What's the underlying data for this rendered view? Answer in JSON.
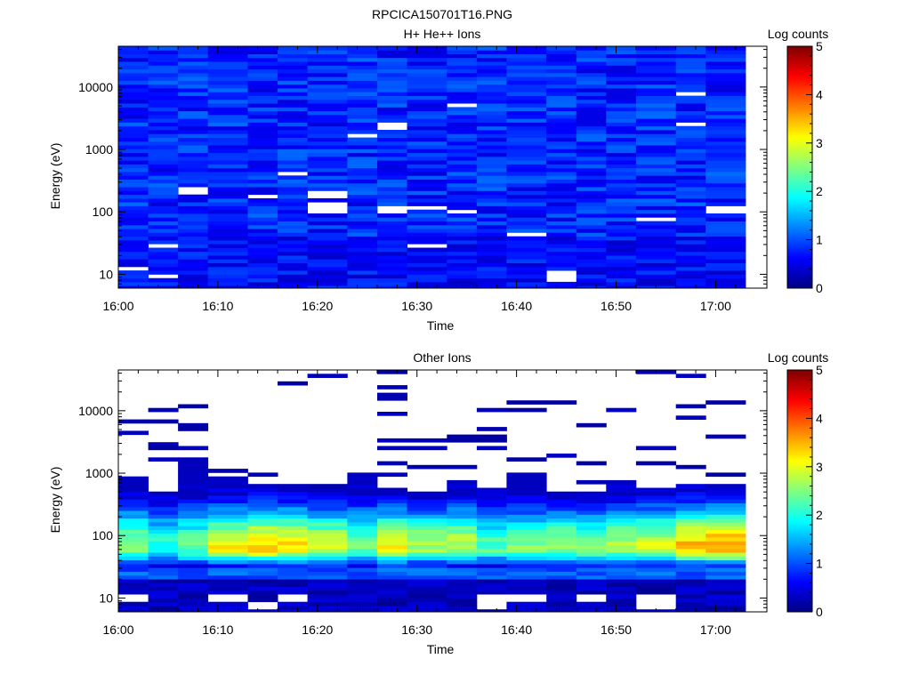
{
  "figure_title": "RPCICA150701T16.PNG",
  "colors": {
    "colormap": [
      "#000080",
      "#0000ff",
      "#0080ff",
      "#00ffff",
      "#80ff80",
      "#ffff00",
      "#ff8000",
      "#ff0000",
      "#800000"
    ],
    "background": "#ffffff",
    "axis": "#000000"
  },
  "chart_data": [
    {
      "type": "heatmap",
      "title": "H+ He++ Ions",
      "xlabel": "Time",
      "ylabel": "Energy (eV)",
      "xlim": [
        "16:00",
        "17:03"
      ],
      "ylim": [
        6,
        45000
      ],
      "yscale": "log",
      "x_tick_labels": [
        "16:00",
        "16:10",
        "16:20",
        "16:30",
        "16:40",
        "16:50",
        "17:00"
      ],
      "y_tick_labels": [
        "10",
        "100",
        "1000",
        "10000"
      ],
      "colorbar_label": "Log counts",
      "colorbar_ticks": [
        "0",
        "1",
        "2",
        "3",
        "4",
        "5"
      ],
      "crange": [
        0,
        5
      ],
      "time_bins": [
        "16:00",
        "16:03",
        "16:06",
        "16:09",
        "16:13",
        "16:16",
        "16:19",
        "16:23",
        "16:26",
        "16:29",
        "16:33",
        "16:36",
        "16:39",
        "16:43",
        "16:46",
        "16:49",
        "16:52",
        "16:56",
        "16:59"
      ],
      "energy_levels_eV": [
        8,
        45000
      ],
      "energy_bins": 64,
      "typical_log_counts": 0.8,
      "spread_log_counts": 0.35,
      "empty_bins": [
        {
          "t": "16:00",
          "energy_eV": 12
        },
        {
          "t": "16:03",
          "energy_eV": 9
        },
        {
          "t": "16:03",
          "energy_eV": 28
        },
        {
          "t": "16:06",
          "energy_eV": 220
        },
        {
          "t": "16:13",
          "energy_eV": 170
        },
        {
          "t": "16:16",
          "energy_eV": 400
        },
        {
          "t": "16:19",
          "energy_eV": 190
        },
        {
          "t": "16:19",
          "energy_eV": 130
        },
        {
          "t": "16:19",
          "energy_eV": 110
        },
        {
          "t": "16:23",
          "energy_eV": 1600
        },
        {
          "t": "16:26",
          "energy_eV": 110
        },
        {
          "t": "16:26",
          "energy_eV": 100
        },
        {
          "t": "16:26",
          "energy_eV": 2400
        },
        {
          "t": "16:29",
          "energy_eV": 120
        },
        {
          "t": "16:29",
          "energy_eV": 30
        },
        {
          "t": "16:33",
          "energy_eV": 5000
        },
        {
          "t": "16:33",
          "energy_eV": 100
        },
        {
          "t": "16:39",
          "energy_eV": 45
        },
        {
          "t": "16:43",
          "energy_eV": 10
        },
        {
          "t": "16:43",
          "energy_eV": 8
        },
        {
          "t": "16:52",
          "energy_eV": 80
        },
        {
          "t": "16:56",
          "energy_eV": 2500
        },
        {
          "t": "16:56",
          "energy_eV": 7500
        },
        {
          "t": "16:59",
          "energy_eV": 110
        }
      ]
    },
    {
      "type": "heatmap",
      "title": "Other Ions",
      "xlabel": "Time",
      "ylabel": "Energy (eV)",
      "xlim": [
        "16:00",
        "17:03"
      ],
      "ylim": [
        6,
        45000
      ],
      "yscale": "log",
      "x_tick_labels": [
        "16:00",
        "16:10",
        "16:20",
        "16:30",
        "16:40",
        "16:50",
        "17:00"
      ],
      "y_tick_labels": [
        "10",
        "100",
        "1000",
        "10000"
      ],
      "colorbar_label": "Log counts",
      "colorbar_ticks": [
        "0",
        "1",
        "2",
        "3",
        "4",
        "5"
      ],
      "crange": [
        0,
        5
      ],
      "time_bins": [
        "16:00",
        "16:03",
        "16:06",
        "16:09",
        "16:13",
        "16:16",
        "16:19",
        "16:23",
        "16:26",
        "16:29",
        "16:33",
        "16:36",
        "16:39",
        "16:43",
        "16:46",
        "16:49",
        "16:52",
        "16:56",
        "16:59"
      ],
      "energy_bins": 64,
      "peak_energy_eV": 65,
      "peak_log_counts": [
        2.6,
        2.1,
        2.4,
        3.1,
        3.4,
        3.2,
        2.9,
        2.5,
        3.1,
        2.7,
        2.8,
        2.3,
        2.5,
        2.6,
        2.5,
        2.7,
        2.9,
        3.4,
        3.6
      ],
      "band_top_eV": [
        850,
        500,
        1700,
        900,
        650,
        700,
        600,
        1050,
        600,
        500,
        750,
        550,
        1000,
        500,
        500,
        650,
        550,
        650,
        650
      ],
      "sparse_lines_eV": [
        [
          6500,
          4300
        ],
        [
          10500,
          7000,
          2900,
          2400,
          1600
        ],
        [
          12000,
          5500,
          2600
        ],
        [
          1100
        ],
        [
          950
        ],
        [
          26000
        ],
        [
          38000,
          600
        ],
        [],
        [
          45000,
          25000,
          17000,
          9000,
          3200,
          2600,
          1400,
          900
        ],
        [
          3500,
          2500,
          1200
        ],
        [
          3600,
          1300
        ],
        [
          10500,
          5000,
          3600,
          2500
        ],
        [
          13500,
          10000,
          1600
        ],
        [
          13000,
          2000
        ],
        [
          6000,
          1400,
          700
        ],
        [
          10500,
          700
        ],
        [
          40000,
          2600,
          1400
        ],
        [
          38000,
          12000,
          8000,
          1300
        ],
        [
          13000,
          3700,
          950
        ]
      ],
      "low_energy_empty": [
        {
          "t": "16:00",
          "energy_eV": 10
        },
        {
          "t": "16:09",
          "energy_eV": 10
        },
        {
          "t": "16:13",
          "energy_eV": 8
        },
        {
          "t": "16:16",
          "energy_eV": 10
        },
        {
          "t": "16:36",
          "energy_eV": 10
        },
        {
          "t": "16:36",
          "energy_eV": 8
        },
        {
          "t": "16:39",
          "energy_eV": 10
        },
        {
          "t": "16:46",
          "energy_eV": 10
        },
        {
          "t": "16:52",
          "energy_eV": 10
        },
        {
          "t": "16:52",
          "energy_eV": 8
        }
      ]
    }
  ]
}
